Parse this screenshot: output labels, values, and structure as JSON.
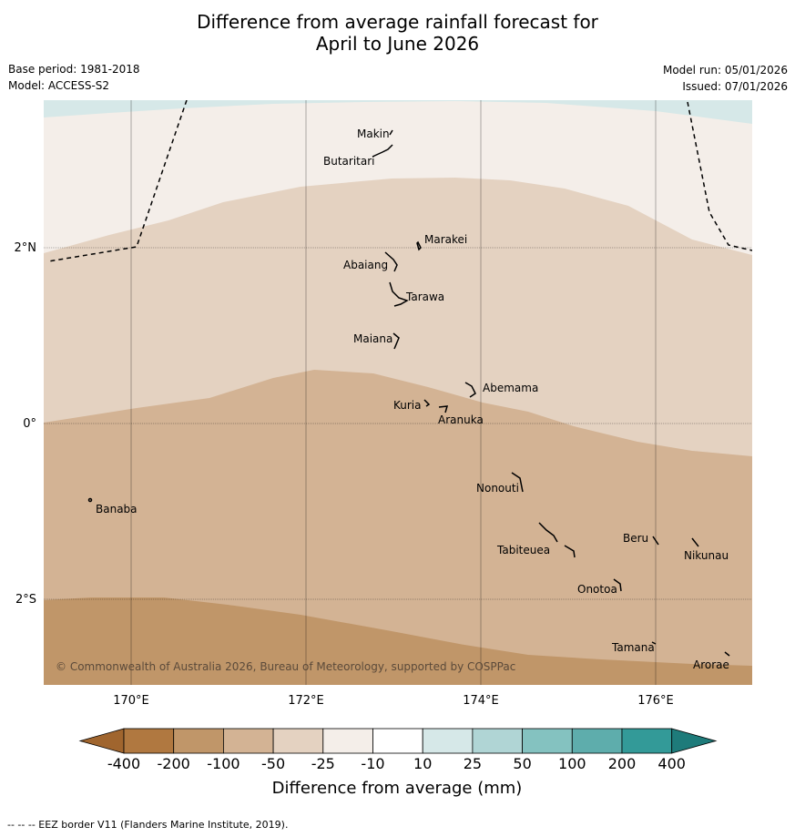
{
  "header": {
    "title_line1": "Difference from average rainfall forecast for",
    "title_line2": "April to June 2026",
    "base_period": "Base period: 1981-2018",
    "model": "Model: ACCESS-S2",
    "model_run": "Model run: 05/01/2026",
    "issued": "Issued: 07/01/2026"
  },
  "map": {
    "lat_labels": [
      "2°N",
      "0°",
      "2°S"
    ],
    "lon_labels": [
      "170°E",
      "172°E",
      "174°E",
      "176°E"
    ],
    "copyright": "© Commonwealth of Australia 2026, Bureau of Meteorology, supported by COSPPac",
    "islands": [
      {
        "name": "Makin",
        "lon": 172.95,
        "lat": 3.25
      },
      {
        "name": "Butaritari",
        "lon": 172.8,
        "lat": 3.05
      },
      {
        "name": "Marakei",
        "lon": 173.3,
        "lat": 1.97
      },
      {
        "name": "Abaiang",
        "lon": 172.95,
        "lat": 1.85
      },
      {
        "name": "Tarawa",
        "lon": 173.1,
        "lat": 1.4
      },
      {
        "name": "Maiana",
        "lon": 173.0,
        "lat": 0.95
      },
      {
        "name": "Abemama",
        "lon": 173.9,
        "lat": 0.42
      },
      {
        "name": "Kuria",
        "lon": 173.4,
        "lat": 0.23
      },
      {
        "name": "Aranuka",
        "lon": 173.6,
        "lat": 0.17
      },
      {
        "name": "Nonouti",
        "lon": 174.4,
        "lat": -0.65
      },
      {
        "name": "Banaba",
        "lon": 169.55,
        "lat": -0.87
      },
      {
        "name": "Tabiteuea",
        "lon": 174.8,
        "lat": -1.4
      },
      {
        "name": "Beru",
        "lon": 176.0,
        "lat": -1.33
      },
      {
        "name": "Nikunau",
        "lon": 176.45,
        "lat": -1.38
      },
      {
        "name": "Onotoa",
        "lon": 175.55,
        "lat": -1.82
      },
      {
        "name": "Tamana",
        "lon": 175.98,
        "lat": -2.5
      },
      {
        "name": "Arorae",
        "lon": 176.82,
        "lat": -2.64
      }
    ],
    "category_colors": {
      "-200_-100": "#c09669",
      "-100_-50": "#d3b394",
      "-50_-25": "#e4d2c1",
      "-25_-10": "#f4eee9",
      "10_25": "#d6e8e8"
    }
  },
  "colorbar": {
    "ticks": [
      "-400",
      "-200",
      "-100",
      "-50",
      "-25",
      "-10",
      "10",
      "25",
      "50",
      "100",
      "200",
      "400"
    ],
    "colors": [
      "#a0652e",
      "#b07840",
      "#c09669",
      "#d3b394",
      "#e4d2c1",
      "#f4eee9",
      "#ffffff",
      "#d6e8e8",
      "#b0d5d5",
      "#84c2c0",
      "#5eadac",
      "#339a98",
      "#1e7b7a"
    ],
    "label": "Difference from average (mm)"
  },
  "footnote": "--  --  -- EEZ border V11 (Flanders Marine Institute, 2019)."
}
